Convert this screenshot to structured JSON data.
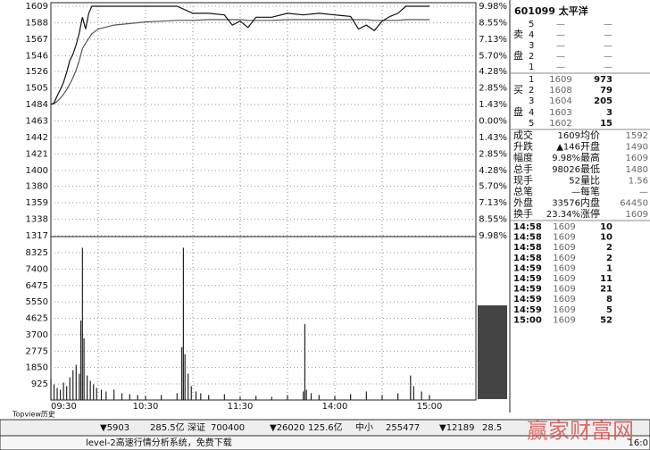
{
  "price_chart": {
    "price_ticks": [
      1609,
      1588,
      1567,
      1546,
      1526,
      1505,
      1484,
      1463,
      1442,
      1421,
      1400,
      1380,
      1359,
      1338,
      1317
    ],
    "pct_ticks": [
      "9.98%",
      "8.55%",
      "7.13%",
      "5.70%",
      "4.28%",
      "2.85%",
      "1.43%",
      "0.00%",
      "1.43%",
      "2.85%",
      "4.28%",
      "5.70%",
      "7.13%",
      "8.55%",
      "9.98%"
    ],
    "volume_ticks": [
      8325,
      7400,
      6475,
      5550,
      4625,
      3700,
      2775,
      1850,
      925
    ],
    "time_labels": [
      "09:30",
      "10:30",
      "11:30",
      "14:00",
      "15:00"
    ],
    "minutes": [
      0,
      2,
      4,
      6,
      8,
      10,
      12,
      14,
      16,
      18,
      20,
      22,
      24,
      26,
      30,
      40,
      50,
      60,
      70,
      80,
      90,
      100,
      110,
      115,
      120,
      125,
      130,
      140,
      150,
      160,
      170,
      180,
      190,
      195,
      200,
      205,
      210,
      215,
      220,
      225,
      230,
      240
    ],
    "price": [
      1484,
      1486,
      1495,
      1503,
      1512,
      1525,
      1540,
      1548,
      1560,
      1575,
      1595,
      1580,
      1600,
      1609,
      1609,
      1609,
      1609,
      1609,
      1609,
      1609,
      1600,
      1600,
      1598,
      1585,
      1590,
      1582,
      1595,
      1595,
      1600,
      1598,
      1600,
      1598,
      1596,
      1580,
      1585,
      1578,
      1590,
      1596,
      1600,
      1609,
      1609,
      1609
    ],
    "average": [
      1484,
      1485,
      1488,
      1492,
      1497,
      1503,
      1510,
      1518,
      1528,
      1540,
      1555,
      1562,
      1568,
      1574,
      1580,
      1585,
      1587,
      1589,
      1590,
      1591,
      1591,
      1592,
      1592,
      1592,
      1592,
      1591,
      1591,
      1591,
      1592,
      1592,
      1592,
      1592,
      1592,
      1592,
      1592,
      1591,
      1591,
      1591,
      1591,
      1592,
      1592,
      1592
    ],
    "volume_minutes": [
      0,
      2,
      4,
      6,
      8,
      10,
      12,
      14,
      16,
      18,
      19,
      20,
      21,
      23,
      25,
      27,
      29,
      32,
      35,
      40,
      45,
      50,
      55,
      60,
      70,
      80,
      83,
      84,
      85,
      87,
      89,
      92,
      95,
      100,
      110,
      120,
      130,
      140,
      150,
      160,
      161,
      162,
      165,
      170,
      180,
      190,
      200,
      210,
      220,
      228,
      230,
      235,
      240
    ],
    "volumes": [
      1200,
      900,
      700,
      600,
      1000,
      800,
      1300,
      1700,
      2000,
      1500,
      4500,
      8600,
      3500,
      1400,
      1100,
      900,
      700,
      600,
      500,
      600,
      400,
      350,
      300,
      250,
      300,
      400,
      3000,
      8600,
      2600,
      1500,
      800,
      500,
      400,
      300,
      350,
      200,
      250,
      200,
      300,
      500,
      4300,
      600,
      400,
      300,
      250,
      350,
      500,
      300,
      400,
      1400,
      800,
      500,
      300
    ],
    "footer": "Topview历史"
  },
  "quote": {
    "title": "601099 太平洋",
    "sell_side": [
      "卖",
      "盘"
    ],
    "sell": [
      [
        "5",
        "—",
        "—"
      ],
      [
        "4",
        "—",
        "—"
      ],
      [
        "3",
        "—",
        "—"
      ],
      [
        "2",
        "—",
        "—"
      ],
      [
        "1",
        "—",
        "—"
      ]
    ],
    "buy_side": [
      "买",
      "盘"
    ],
    "buy": [
      [
        "1",
        "1609",
        "973"
      ],
      [
        "2",
        "1608",
        "79"
      ],
      [
        "3",
        "1604",
        "205"
      ],
      [
        "4",
        "1603",
        "3"
      ],
      [
        "5",
        "1602",
        "15"
      ]
    ],
    "stats": [
      [
        "成交",
        "1609",
        "均价",
        "1592"
      ],
      [
        "升跌",
        "▲146",
        "开盘",
        "1490"
      ],
      [
        "幅度",
        "9.98%",
        "最高",
        "1609"
      ],
      [
        "总手",
        "98026",
        "最低",
        "1480"
      ],
      [
        "现手",
        "52",
        "量比",
        "1.56"
      ],
      [
        "总笔",
        "—",
        "每笔",
        "—"
      ],
      [
        "外盘",
        "33576",
        "内盘",
        "64450"
      ],
      [
        "换手",
        "23.34%",
        "涨停",
        "1609"
      ]
    ],
    "trades": [
      [
        "14:58",
        "1609",
        "10"
      ],
      [
        "14:58",
        "1609",
        "10"
      ],
      [
        "14:58",
        "1609",
        "2"
      ],
      [
        "14:58",
        "1609",
        "2"
      ],
      [
        "14:59",
        "1609",
        "1"
      ],
      [
        "14:59",
        "1609",
        "11"
      ],
      [
        "14:59",
        "1609",
        "21"
      ],
      [
        "14:59",
        "1609",
        "8"
      ],
      [
        "14:59",
        "1609",
        "5"
      ],
      [
        "15:00",
        "1609",
        "52"
      ]
    ]
  },
  "status_bar": {
    "items": [
      "▼5903",
      "285.5亿",
      "深证",
      "700400",
      "▼26020",
      "125.6亿",
      "中小",
      "255477",
      "▼12189",
      "28.5"
    ],
    "message": "level-2高速行情分析系统，免费下载",
    "clock": "16:0"
  },
  "watermark": "赢家财富网"
}
